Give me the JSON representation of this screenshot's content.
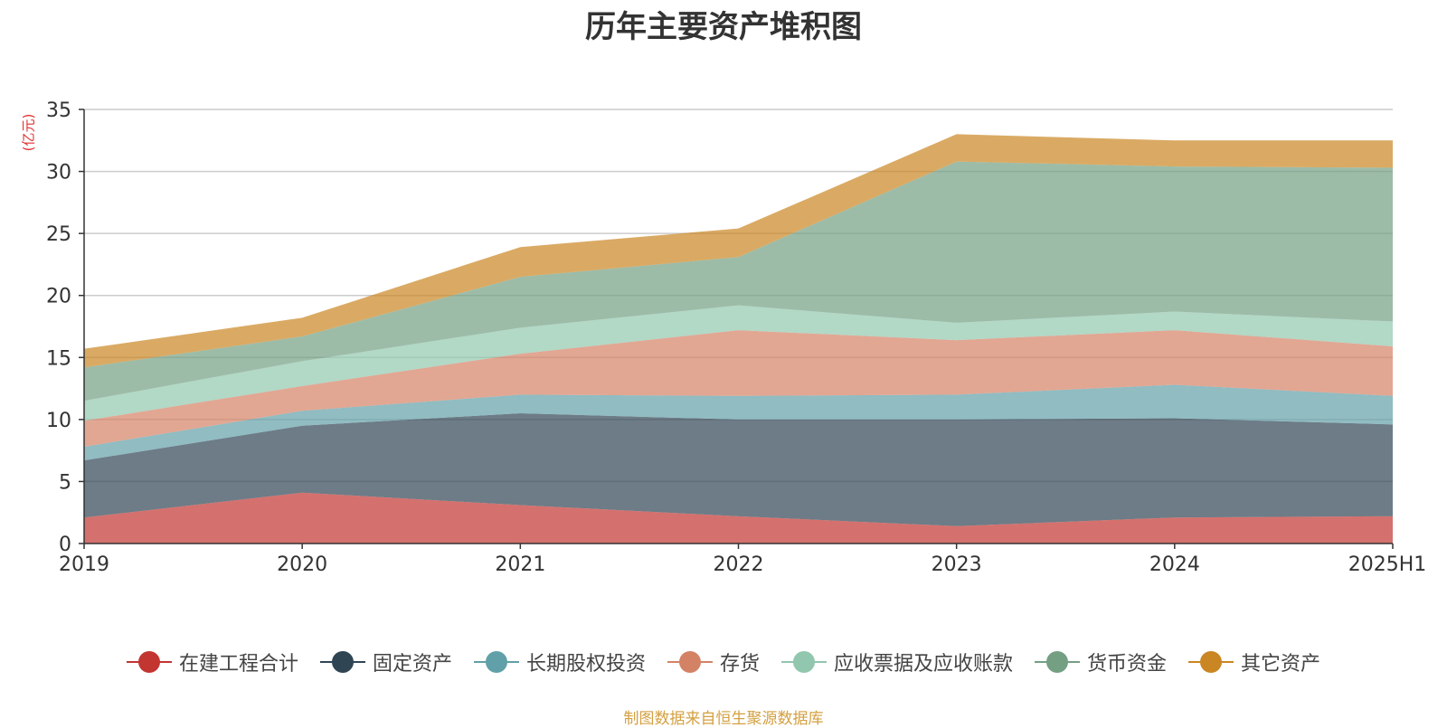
{
  "chart_data": {
    "type": "area",
    "stacked": true,
    "title": "历年主要资产堆积图",
    "unit_label": "(亿元)",
    "categories": [
      "2019",
      "2020",
      "2021",
      "2022",
      "2023",
      "2024",
      "2025H1"
    ],
    "ylim": [
      0,
      35
    ],
    "yticks": [
      0,
      5,
      10,
      15,
      20,
      25,
      30,
      35
    ],
    "grid": true,
    "legend_position": "bottom",
    "series": [
      {
        "name": "在建工程合计",
        "color": "#c23531",
        "values": [
          2.1,
          4.1,
          3.1,
          2.2,
          1.4,
          2.1,
          2.2
        ]
      },
      {
        "name": "固定资产",
        "color": "#2f4554",
        "values": [
          4.6,
          5.4,
          7.4,
          7.8,
          8.6,
          8.0,
          7.4
        ]
      },
      {
        "name": "长期股权投资",
        "color": "#61a0a8",
        "values": [
          1.1,
          1.2,
          1.5,
          1.9,
          2.0,
          2.7,
          2.3
        ]
      },
      {
        "name": "存货",
        "color": "#d48265",
        "values": [
          2.1,
          2.0,
          3.3,
          5.3,
          4.4,
          4.4,
          4.0
        ]
      },
      {
        "name": "应收票据及应收账款",
        "color": "#91c7ae",
        "values": [
          1.6,
          2.0,
          2.1,
          2.0,
          1.4,
          1.5,
          2.0
        ]
      },
      {
        "name": "货币资金",
        "color": "#749f83",
        "values": [
          2.7,
          2.0,
          4.1,
          3.9,
          13.0,
          11.7,
          12.4
        ]
      },
      {
        "name": "其它资产",
        "color": "#ca8622",
        "values": [
          1.5,
          1.5,
          2.4,
          2.3,
          2.2,
          2.1,
          2.2
        ]
      }
    ]
  },
  "source_note": "制图数据来自恒生聚源数据库"
}
